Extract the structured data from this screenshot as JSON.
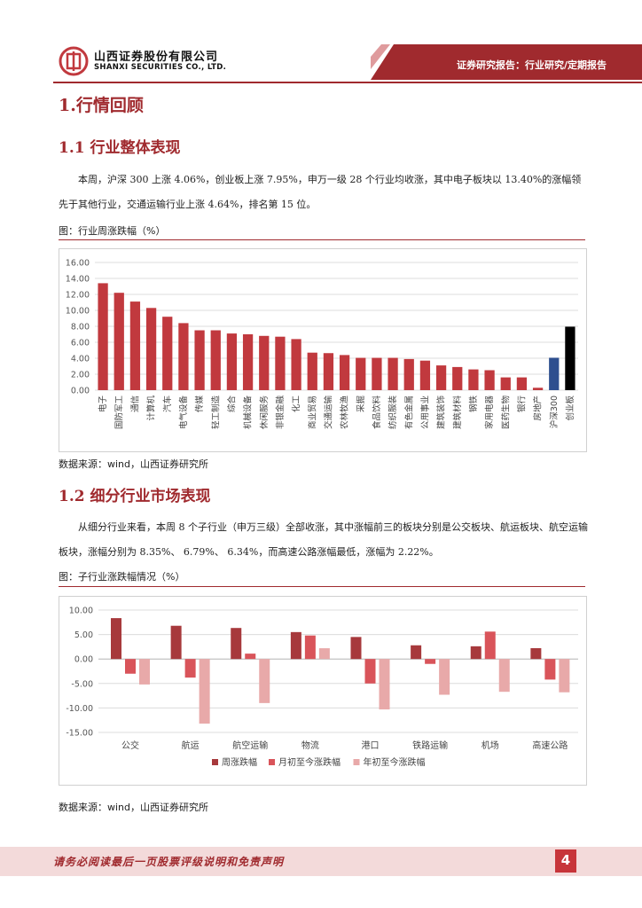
{
  "header": {
    "company_cn": "山西证券股份有限公司",
    "company_en": "SHANXI SECURITIES CO., LTD.",
    "report_type": "证券研究报告：行业研究/定期报告",
    "brand_color": "#a02a2e",
    "logo_icon": "shanxi-securities-logo-icon"
  },
  "section1": {
    "title": "1.行情回顾"
  },
  "section1_1": {
    "title": "1.1  行业整体表现",
    "paragraph": "本周，沪深 300 上涨 4.06%，创业板上涨 7.95%，申万一级 28 个行业均收涨，其中电子板块以 13.40%的涨幅领先于其他行业，交通运输行业上涨 4.64%，排名第 15 位。",
    "figure_caption": "图：行业周涨跌幅（%）",
    "source": "数据来源：wind，山西证券研究所"
  },
  "section1_2": {
    "title": "1.2  细分行业市场表现",
    "paragraph": "从细分行业来看，本周 8 个子行业（申万三级）全部收涨，其中涨幅前三的板块分别是公交板块、航运板块、航空运输板块，涨幅分别为 8.35%、 6.79%、 6.34%，而高速公路涨幅最低，涨幅为 2.22%。",
    "figure_caption": "图：子行业涨跌幅情况（%）",
    "source": "数据来源：wind，山西证券研究所"
  },
  "footer": {
    "disclaimer": "请务必阅读最后一页股票评级说明和免责声明",
    "page_number": "4"
  },
  "chart_data": [
    {
      "type": "bar",
      "categories": [
        "电子",
        "国防军工",
        "通信",
        "计算机",
        "汽车",
        "电气设备",
        "传媒",
        "轻工制造",
        "综合",
        "机械设备",
        "休闲服务",
        "非银金融",
        "化工",
        "商业贸易",
        "交通运输",
        "农林牧渔",
        "采掘",
        "食品饮料",
        "纺织服装",
        "有色金属",
        "公用事业",
        "建筑装饰",
        "建筑材料",
        "钢铁",
        "家用电器",
        "医药生物",
        "银行",
        "房地产",
        "沪深300",
        "创业板"
      ],
      "values": [
        13.4,
        12.2,
        11.1,
        10.3,
        9.2,
        8.4,
        7.5,
        7.5,
        7.1,
        7.0,
        6.8,
        6.7,
        6.4,
        4.7,
        4.64,
        4.4,
        4.05,
        4.05,
        4.05,
        3.9,
        3.7,
        3.1,
        2.9,
        2.6,
        2.5,
        1.6,
        1.6,
        0.3,
        4.06,
        7.95
      ],
      "colors": [
        "#c1393e",
        "#c1393e",
        "#c1393e",
        "#c1393e",
        "#c1393e",
        "#c1393e",
        "#c1393e",
        "#c1393e",
        "#c1393e",
        "#c1393e",
        "#c1393e",
        "#c1393e",
        "#c1393e",
        "#c1393e",
        "#c1393e",
        "#c1393e",
        "#c1393e",
        "#c1393e",
        "#c1393e",
        "#c1393e",
        "#c1393e",
        "#c1393e",
        "#c1393e",
        "#c1393e",
        "#c1393e",
        "#c1393e",
        "#c1393e",
        "#c1393e",
        "#2e4f8f",
        "#000000"
      ],
      "ylim": [
        0,
        16
      ],
      "yticks": [
        "0.00",
        "2.00",
        "4.00",
        "6.00",
        "8.00",
        "10.00",
        "12.00",
        "14.00",
        "16.00"
      ],
      "grid": true,
      "xlabel": "",
      "ylabel": ""
    },
    {
      "type": "bar",
      "categories": [
        "公交",
        "航运",
        "航空运输",
        "物流",
        "港口",
        "铁路运输",
        "机场",
        "高速公路"
      ],
      "series": [
        {
          "name": "周涨跌幅",
          "color": "#a7393c",
          "values": [
            8.35,
            6.79,
            6.34,
            5.5,
            4.5,
            2.8,
            2.6,
            2.22
          ]
        },
        {
          "name": "月初至今涨跌幅",
          "color": "#d9545a",
          "values": [
            -3.0,
            -3.8,
            1.1,
            4.8,
            -5.0,
            -1.0,
            5.6,
            -4.2
          ]
        },
        {
          "name": "年初至今涨跌幅",
          "color": "#e8a9a9",
          "values": [
            -5.2,
            -13.2,
            -9.0,
            2.2,
            -10.3,
            -7.3,
            -6.7,
            -6.8
          ]
        }
      ],
      "ylim": [
        -15,
        10
      ],
      "yticks": [
        "-15.00",
        "-10.00",
        "-5.00",
        "0.00",
        "5.00",
        "10.00"
      ],
      "grid": true,
      "legend": "bottom",
      "xlabel": "",
      "ylabel": ""
    }
  ]
}
